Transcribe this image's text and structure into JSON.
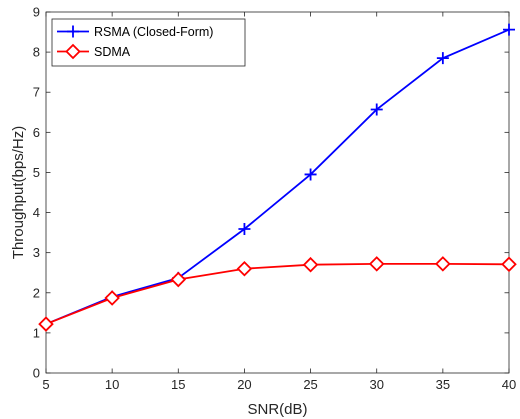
{
  "chart_data": {
    "type": "line",
    "xlabel": "SNR(dB)",
    "ylabel": "Throughput(bps/Hz)",
    "x": [
      5,
      10,
      15,
      20,
      25,
      30,
      35,
      40
    ],
    "xlim": [
      5,
      40
    ],
    "ylim": [
      0,
      9
    ],
    "xticks": [
      "5",
      "10",
      "15",
      "20",
      "25",
      "30",
      "35",
      "40"
    ],
    "yticks": [
      "0",
      "1",
      "2",
      "3",
      "4",
      "5",
      "6",
      "7",
      "8",
      "9"
    ],
    "grid": false,
    "legend_position": "top-left",
    "series": [
      {
        "name": "RSMA (Closed-Form)",
        "marker": "plus",
        "color": "#0000ff",
        "values": [
          1.22,
          1.9,
          2.37,
          3.59,
          4.95,
          6.57,
          7.85,
          8.56
        ]
      },
      {
        "name": "SDMA",
        "marker": "diamond",
        "color": "#ff0000",
        "values": [
          1.22,
          1.87,
          2.33,
          2.6,
          2.7,
          2.72,
          2.72,
          2.71
        ]
      }
    ]
  }
}
